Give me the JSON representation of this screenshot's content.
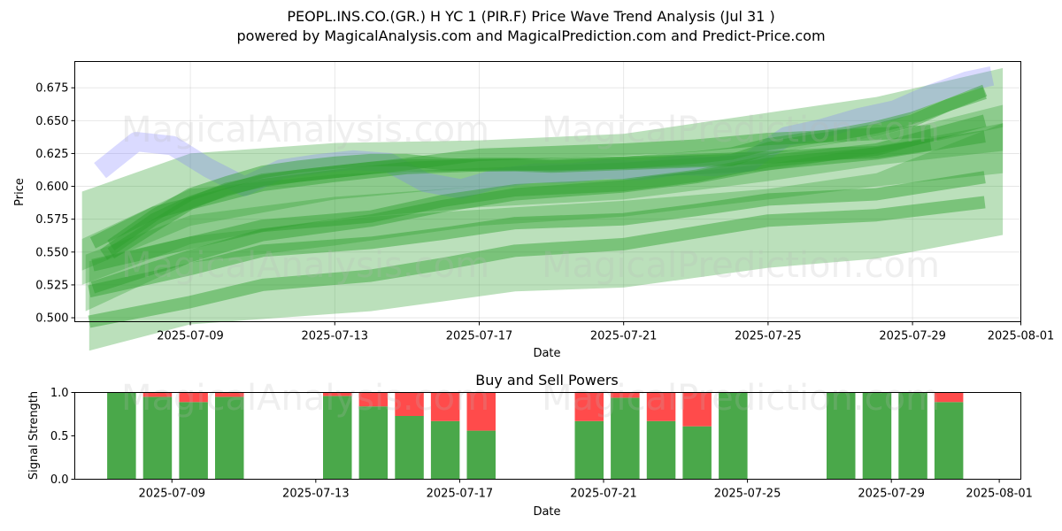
{
  "header": {
    "title_line1": "PEOPL.INS.CO.(GR.) H YC 1 (PIR.F) Price Wave Trend Analysis (Jul 31 )",
    "title_line2": "powered by MagicalAnalysis.com and MagicalPrediction.com and Predict-Price.com"
  },
  "watermarks": [
    "MagicalAnalysis.com",
    "MagicalPrediction.com"
  ],
  "colors": {
    "green": "#2ca02c",
    "blue": "#7b7bff",
    "buy": "#4aa84a",
    "sell": "#ff4b4b"
  },
  "chart_data": [
    {
      "type": "line",
      "title": "",
      "xlabel": "Date",
      "ylabel": "Price",
      "x_ticks": [
        "2025-07-09",
        "2025-07-13",
        "2025-07-17",
        "2025-07-21",
        "2025-07-25",
        "2025-07-29",
        "2025-08-01"
      ],
      "x_tick_days": [
        9,
        13,
        17,
        21,
        25,
        29,
        32
      ],
      "y_ticks": [
        "0.500",
        "0.525",
        "0.550",
        "0.575",
        "0.600",
        "0.625",
        "0.650",
        "0.675"
      ],
      "y_tick_values": [
        0.5,
        0.525,
        0.55,
        0.575,
        0.6,
        0.625,
        0.65,
        0.675
      ],
      "xlim_days": [
        5.8,
        32.0
      ],
      "ylim": [
        0.497,
        0.695
      ],
      "grid": true,
      "series": [
        {
          "name": "price-wave-blue",
          "color": "#7b7bff",
          "kind": "blue",
          "x": [
            6.5,
            7.5,
            8.5,
            9.5,
            10.5,
            11.5,
            12.5,
            13.5,
            14.5,
            15.5,
            16.5,
            17.5,
            18.5,
            19.5,
            20.5,
            21.5,
            22.5,
            23.5,
            24.5,
            25.5,
            26.5,
            27.5,
            28.5,
            29.5,
            30.5,
            31.2
          ],
          "y": [
            0.612,
            0.634,
            0.631,
            0.614,
            0.6,
            0.613,
            0.617,
            0.62,
            0.618,
            0.603,
            0.598,
            0.606,
            0.61,
            0.61,
            0.613,
            0.612,
            0.616,
            0.615,
            0.619,
            0.638,
            0.644,
            0.652,
            0.658,
            0.67,
            0.68,
            0.684
          ]
        },
        {
          "name": "wave-fast-1",
          "color": "#2ca02c",
          "kind": "green",
          "x": [
            6.8,
            8,
            9,
            10,
            11,
            12,
            13,
            14,
            15,
            16,
            17,
            18,
            19,
            20,
            21,
            22,
            23,
            24,
            25,
            26,
            27,
            28,
            29,
            30,
            31
          ],
          "y": [
            0.555,
            0.578,
            0.594,
            0.603,
            0.611,
            0.615,
            0.618,
            0.62,
            0.62,
            0.617,
            0.616,
            0.616,
            0.615,
            0.616,
            0.617,
            0.618,
            0.619,
            0.62,
            0.629,
            0.634,
            0.638,
            0.643,
            0.65,
            0.662,
            0.673
          ]
        },
        {
          "name": "wave-fast-2",
          "color": "#2ca02c",
          "kind": "green",
          "x": [
            6.8,
            8,
            9,
            10,
            11,
            12,
            13,
            14,
            15,
            16,
            17,
            18,
            19,
            20,
            21,
            22,
            23,
            24,
            25,
            26,
            27,
            28,
            29,
            30,
            31
          ],
          "y": [
            0.549,
            0.57,
            0.587,
            0.598,
            0.604,
            0.608,
            0.611,
            0.614,
            0.616,
            0.616,
            0.617,
            0.617,
            0.616,
            0.617,
            0.618,
            0.62,
            0.622,
            0.625,
            0.632,
            0.636,
            0.64,
            0.645,
            0.652,
            0.662,
            0.671
          ]
        },
        {
          "name": "wave-medium",
          "color": "#2ca02c",
          "kind": "green",
          "x": [
            6.6,
            8,
            9,
            10,
            11,
            13,
            15,
            17,
            19,
            21,
            23,
            25,
            28,
            29.5
          ],
          "y": [
            0.548,
            0.575,
            0.588,
            0.597,
            0.605,
            0.611,
            0.617,
            0.624,
            0.626,
            0.628,
            0.631,
            0.636,
            0.64,
            0.642
          ]
        },
        {
          "name": "wave-slow-1",
          "color": "#2ca02c",
          "kind": "green",
          "x": [
            6.3,
            8,
            9,
            11,
            13,
            15,
            17,
            19,
            21,
            23,
            25,
            27,
            28,
            29.5
          ],
          "y": [
            0.557,
            0.58,
            0.587,
            0.601,
            0.608,
            0.614,
            0.616,
            0.617,
            0.618,
            0.62,
            0.622,
            0.625,
            0.626,
            0.632
          ]
        },
        {
          "name": "wave-trend-1",
          "color": "#2ca02c",
          "kind": "green",
          "x": [
            6.3,
            9,
            11,
            14,
            16,
            18,
            21,
            23,
            25,
            28,
            31
          ],
          "y": [
            0.523,
            0.547,
            0.563,
            0.574,
            0.585,
            0.594,
            0.6,
            0.607,
            0.617,
            0.625,
            0.638
          ]
        },
        {
          "name": "wave-trend-2",
          "color": "#2ca02c",
          "kind": "green",
          "x": [
            6.3,
            9,
            11,
            14,
            16,
            18,
            21,
            23,
            25,
            28,
            31
          ],
          "y": [
            0.54,
            0.557,
            0.57,
            0.577,
            0.589,
            0.597,
            0.601,
            0.608,
            0.619,
            0.628,
            0.65
          ]
        },
        {
          "name": "wave-long-1",
          "color": "#2ca02c",
          "kind": "green",
          "x": [
            6.2,
            9,
            11,
            14,
            16,
            18,
            21,
            23,
            25,
            28,
            31
          ],
          "y": [
            0.52,
            0.537,
            0.551,
            0.557,
            0.564,
            0.572,
            0.575,
            0.582,
            0.59,
            0.594,
            0.607
          ]
        },
        {
          "name": "wave-long-2",
          "color": "#2ca02c",
          "kind": "green",
          "x": [
            6.2,
            9,
            11,
            14,
            16,
            18,
            21,
            23,
            25,
            28,
            31
          ],
          "y": [
            0.497,
            0.512,
            0.525,
            0.532,
            0.541,
            0.551,
            0.556,
            0.565,
            0.574,
            0.578,
            0.588
          ]
        }
      ],
      "bands": [
        {
          "name": "band-1",
          "x": [
            6.0,
            9,
            13,
            17,
            21,
            25,
            28,
            31.5
          ],
          "low": [
            0.525,
            0.556,
            0.575,
            0.584,
            0.59,
            0.604,
            0.616,
            0.627
          ],
          "high": [
            0.596,
            0.625,
            0.633,
            0.635,
            0.64,
            0.656,
            0.668,
            0.69
          ]
        },
        {
          "name": "band-2",
          "x": [
            6.0,
            9,
            13,
            17,
            21,
            25,
            28,
            31.5
          ],
          "low": [
            0.536,
            0.57,
            0.59,
            0.6,
            0.606,
            0.612,
            0.625,
            0.645
          ],
          "high": [
            0.56,
            0.598,
            0.609,
            0.614,
            0.618,
            0.625,
            0.638,
            0.662
          ]
        },
        {
          "name": "band-3",
          "x": [
            6.1,
            9,
            13,
            17,
            21,
            25,
            28,
            31.5
          ],
          "low": [
            0.505,
            0.542,
            0.555,
            0.57,
            0.577,
            0.59,
            0.6,
            0.61
          ],
          "high": [
            0.548,
            0.578,
            0.592,
            0.6,
            0.606,
            0.617,
            0.63,
            0.648
          ]
        },
        {
          "name": "band-4",
          "x": [
            6.2,
            9,
            14,
            18,
            21,
            25,
            28,
            31.5
          ],
          "low": [
            0.475,
            0.495,
            0.505,
            0.52,
            0.523,
            0.538,
            0.545,
            0.563
          ],
          "high": [
            0.543,
            0.562,
            0.577,
            0.584,
            0.589,
            0.598,
            0.61,
            0.648
          ]
        }
      ]
    },
    {
      "type": "bar",
      "title": "Buy and Sell Powers",
      "xlabel": "Date",
      "ylabel": "Signal Strength",
      "x_ticks": [
        "2025-07-09",
        "2025-07-13",
        "2025-07-17",
        "2025-07-21",
        "2025-07-25",
        "2025-07-29",
        "2025-08-01"
      ],
      "x_tick_days": [
        9,
        13,
        17,
        21,
        25,
        29,
        32
      ],
      "y_ticks": [
        "0.0",
        "0.5",
        "1.0"
      ],
      "y_tick_values": [
        0.0,
        0.5,
        1.0
      ],
      "xlim_days": [
        6.3,
        32.6
      ],
      "ylim": [
        0,
        1
      ],
      "days": [
        7.6,
        8.6,
        9.6,
        10.6,
        13.6,
        14.6,
        15.6,
        16.6,
        17.6,
        20.6,
        21.6,
        22.6,
        23.6,
        24.6,
        27.6,
        28.6,
        29.6,
        30.6
      ],
      "buy": [
        1.0,
        0.95,
        0.89,
        0.95,
        0.96,
        0.84,
        0.73,
        0.67,
        0.56,
        0.67,
        0.94,
        0.67,
        0.61,
        1.0,
        1.0,
        1.0,
        1.0,
        0.89
      ],
      "sell": [
        0.0,
        0.05,
        0.11,
        0.05,
        0.04,
        0.16,
        0.27,
        0.33,
        0.44,
        0.33,
        0.06,
        0.33,
        0.39,
        0.0,
        0.0,
        0.0,
        0.0,
        0.11
      ]
    }
  ]
}
